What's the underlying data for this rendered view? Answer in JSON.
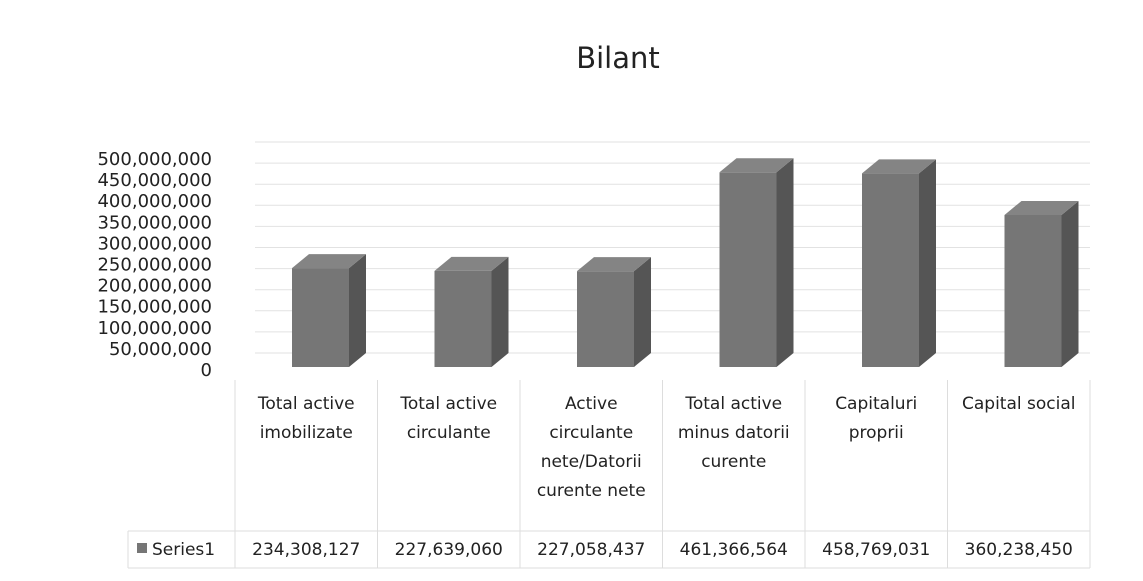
{
  "chart_data": {
    "type": "bar",
    "title": "Bilant",
    "categories": [
      "Total active imobilizate",
      "Total active circulante",
      "Active circulante nete/Datorii curente nete",
      "Total active minus datorii curente",
      "Capitaluri proprii",
      "Capital social"
    ],
    "series": [
      {
        "name": "Series1",
        "color": "#767676",
        "values": [
          234308127,
          227639060,
          227058437,
          461366564,
          458769031,
          360238450
        ],
        "value_labels": [
          "234,308,127",
          "227,639,060",
          "227,058,437",
          "461,366,564",
          "458,769,031",
          "360,238,450"
        ]
      }
    ],
    "ylim": [
      0,
      500000000
    ],
    "yticks": [
      0,
      {
        "value": 50000000,
        "label": "50,000,000"
      },
      {
        "value": 100000000,
        "label": "100,000,000"
      },
      {
        "value": 150000000,
        "label": "150,000,000"
      },
      {
        "value": 200000000,
        "label": "200,000,000"
      },
      {
        "value": 250000000,
        "label": "250,000,000"
      },
      {
        "value": 300000000,
        "label": "300,000,000"
      },
      {
        "value": 350000000,
        "label": "350,000,000"
      },
      {
        "value": 400000000,
        "label": "400,000,000"
      },
      {
        "value": 450000000,
        "label": "450,000,000"
      },
      {
        "value": 500000000,
        "label": "500,000,000"
      }
    ],
    "grid": true
  }
}
